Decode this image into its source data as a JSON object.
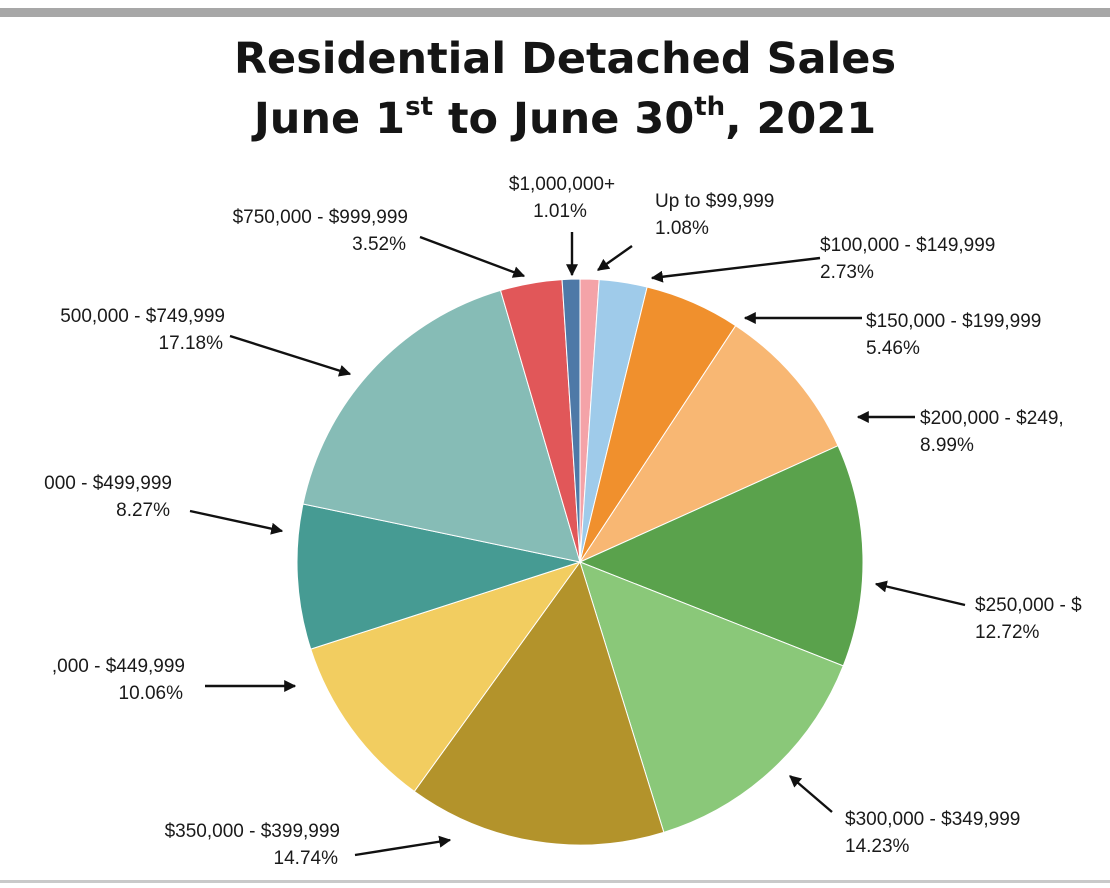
{
  "title_main": "Residential Detached Sales",
  "title_date": {
    "a": "June 1",
    "a_sup": "st",
    "b": " to June 30",
    "b_sup": "th",
    "c": ", 2021"
  },
  "chart_data": {
    "type": "pie",
    "title": "Residential Detached Sales June 1st to June 30th, 2021",
    "start": "top, clockwise",
    "slices": [
      {
        "label": "Up to $99,999",
        "value": 1.08,
        "display": "1.08%",
        "color": "#f4a3a8"
      },
      {
        "label": "$100,000 - $149,999",
        "value": 2.73,
        "display": "2.73%",
        "color": "#9fcbea"
      },
      {
        "label": "$150,000 - $199,999",
        "value": 5.46,
        "display": "5.46%",
        "color": "#f0902d"
      },
      {
        "label": "$200,000 - $249,",
        "value": 8.99,
        "display": "8.99%",
        "color": "#f8b773"
      },
      {
        "label": "$250,000 - $",
        "value": 12.72,
        "display": "12.72%",
        "color": "#5aa24c"
      },
      {
        "label": "$300,000 - $349,999",
        "value": 14.23,
        "display": "14.23%",
        "color": "#8ac879"
      },
      {
        "label": "$350,000 - $399,999",
        "value": 14.74,
        "display": "14.74%",
        "color": "#b3932b"
      },
      {
        "label": ",000 - $449,999",
        "value": 10.06,
        "display": "10.06%",
        "color": "#f2cd60"
      },
      {
        "label": "000 - $499,999",
        "value": 8.27,
        "display": "8.27%",
        "color": "#469b93"
      },
      {
        "label": "500,000 - $749,999",
        "value": 17.18,
        "display": "17.18%",
        "color": "#86bcb6"
      },
      {
        "label": "$750,000 - $999,999",
        "value": 3.52,
        "display": "3.52%",
        "color": "#e15759"
      },
      {
        "label": "$1,000,000+",
        "value": 1.01,
        "display": "1.01%",
        "color": "#4e79a7"
      }
    ]
  }
}
